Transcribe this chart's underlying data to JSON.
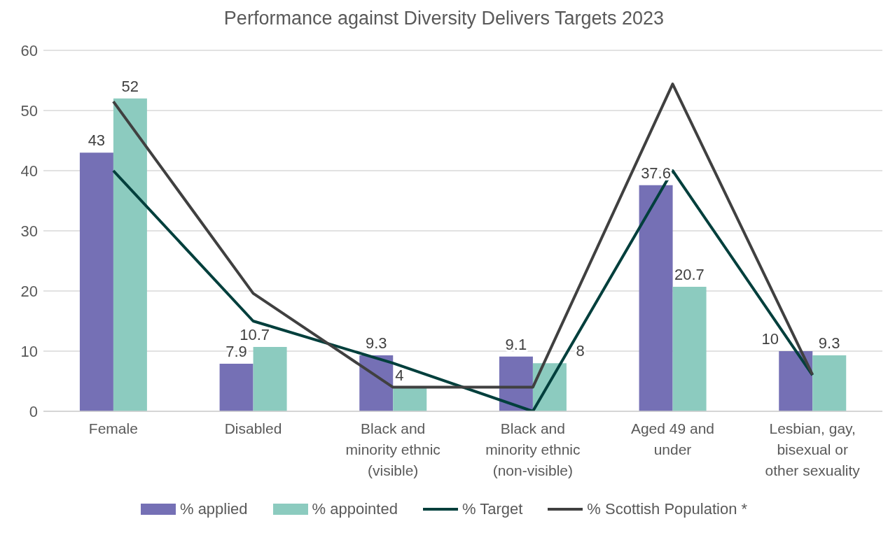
{
  "chart_data": {
    "type": "bar",
    "title": "Performance against Diversity Delivers Targets 2023",
    "categories": [
      "Female",
      "Disabled",
      "Black and minority ethnic (visible)",
      "Black and minority ethnic (non-visible)",
      "Aged 49 and under",
      "Lesbian, gay, bisexual or other sexuality"
    ],
    "series": [
      {
        "name": "% applied",
        "color": "#7570b5",
        "values": [
          43,
          7.9,
          9.3,
          9.1,
          37.6,
          10
        ],
        "value_labels": [
          "43",
          "7.9",
          "9.3",
          "9.1",
          "37.6",
          "10"
        ]
      },
      {
        "name": "% appointed",
        "color": "#8ccbbf",
        "values": [
          52,
          10.7,
          4,
          8,
          20.7,
          9.3
        ],
        "value_labels": [
          "52",
          "10.7",
          "4",
          "8",
          "20.7",
          "9.3"
        ]
      },
      {
        "name": "% Target",
        "type": "line",
        "color": "#003f3c",
        "values": [
          40,
          15,
          8,
          0,
          40,
          6
        ]
      },
      {
        "name": "% Scottish Population *",
        "type": "line",
        "color": "#404040",
        "values": [
          51.5,
          19.6,
          4,
          4,
          54.4,
          6.1
        ]
      }
    ],
    "ylim": [
      0,
      60
    ],
    "yticks": [
      0,
      10,
      20,
      30,
      40,
      50,
      60
    ],
    "grid": "y",
    "legend": "bottom",
    "marker": "none",
    "line_style": "solid"
  }
}
